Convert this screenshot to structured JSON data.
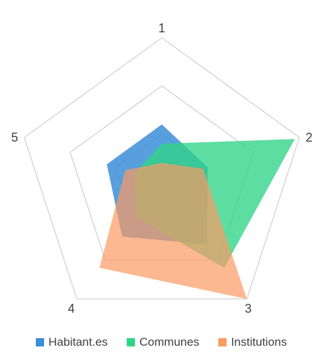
{
  "chart_data": {
    "type": "radar",
    "axes": [
      "1",
      "2",
      "3",
      "4",
      "5"
    ],
    "rmax": 3,
    "rings": [
      1,
      2,
      3
    ],
    "grid": true,
    "legend_position": "bottom",
    "series": [
      {
        "name": "Habitant.es",
        "values": [
          1.2,
          1.0,
          1.6,
          1.4,
          1.2
        ],
        "color": "#3b8ed8",
        "opacity": 0.85
      },
      {
        "name": "Communes",
        "values": [
          0.8,
          2.9,
          2.2,
          0.9,
          0.6
        ],
        "color": "#2fd487",
        "opacity": 0.78
      },
      {
        "name": "Institutions",
        "values": [
          0.4,
          0.9,
          3.0,
          2.2,
          0.8
        ],
        "color": "#fb9a62",
        "opacity": 0.7
      }
    ]
  }
}
